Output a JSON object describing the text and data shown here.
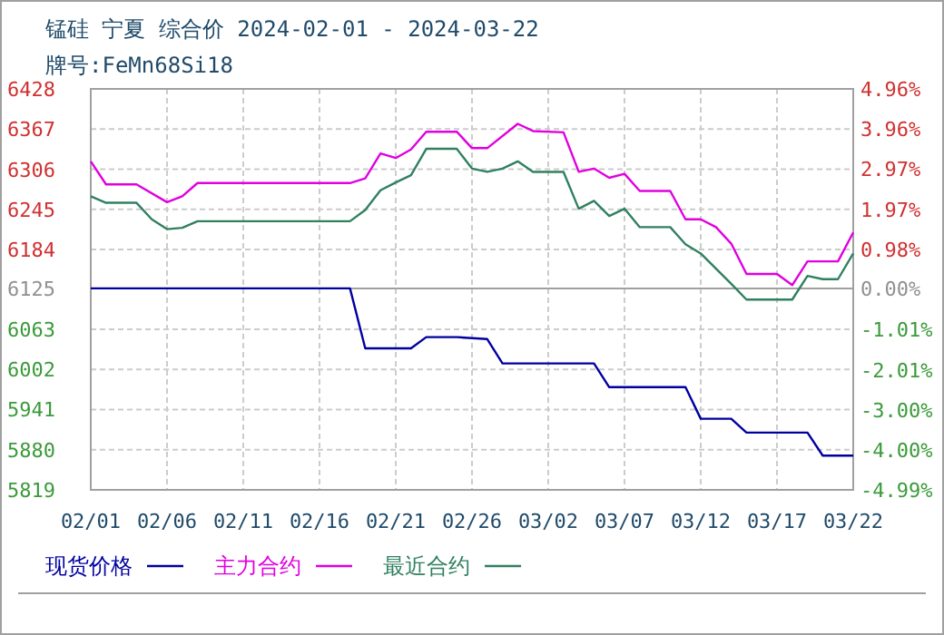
{
  "chart_data": {
    "type": "line",
    "title": "锰硅 宁夏 综合价 2024-02-01 - 2024-03-22",
    "subtitle": "牌号:FeMn68Si18",
    "xlim": [
      "2024-02-01",
      "2024-03-22"
    ],
    "xticks": [
      {
        "value": "2024-02-01",
        "label": "02/01"
      },
      {
        "value": "2024-02-06",
        "label": "02/06"
      },
      {
        "value": "2024-02-11",
        "label": "02/11"
      },
      {
        "value": "2024-02-16",
        "label": "02/16"
      },
      {
        "value": "2024-02-21",
        "label": "02/21"
      },
      {
        "value": "2024-02-26",
        "label": "02/26"
      },
      {
        "value": "2024-03-02",
        "label": "03/02"
      },
      {
        "value": "2024-03-07",
        "label": "03/07"
      },
      {
        "value": "2024-03-12",
        "label": "03/12"
      },
      {
        "value": "2024-03-17",
        "label": "03/17"
      },
      {
        "value": "2024-03-22",
        "label": "03/22"
      }
    ],
    "ylim": [
      5819,
      6428
    ],
    "yticks": [
      5819,
      5880,
      5941,
      6002,
      6063,
      6125,
      6184,
      6245,
      6306,
      6367,
      6428
    ],
    "y2lim": [
      -4.99,
      4.96
    ],
    "y2ticks": [
      {
        "value": -4.99,
        "label": "-4.99%"
      },
      {
        "value": -4.0,
        "label": "-4.00%"
      },
      {
        "value": -3.0,
        "label": "-3.00%"
      },
      {
        "value": -2.01,
        "label": "-2.01%"
      },
      {
        "value": -1.01,
        "label": "-1.01%"
      },
      {
        "value": 0,
        "label": "0.00%"
      },
      {
        "value": 0.98,
        "label": "0.98%"
      },
      {
        "value": 1.97,
        "label": "1.97%"
      },
      {
        "value": 2.97,
        "label": "2.97%"
      },
      {
        "value": 3.96,
        "label": "3.96%"
      },
      {
        "value": 4.96,
        "label": "4.96%"
      }
    ],
    "grid": true,
    "legend": "bottom left",
    "ref_lines": [
      {
        "axis": "y",
        "value": 6125,
        "color": "#a0a0a0"
      }
    ],
    "series": [
      {
        "name": "现货价格",
        "color": "#0000a0",
        "x": [
          "2024-02-01",
          "2024-02-18",
          "2024-02-19",
          "2024-02-22",
          "2024-02-23",
          "2024-02-25",
          "2024-02-27",
          "2024-02-28",
          "2024-03-05",
          "2024-03-06",
          "2024-03-11",
          "2024-03-12",
          "2024-03-14",
          "2024-03-15",
          "2024-03-19",
          "2024-03-20",
          "2024-03-22"
        ],
        "values": [
          6125,
          6125,
          6034,
          6034,
          6051,
          6051,
          6048,
          6011,
          6011,
          5975,
          5975,
          5927,
          5927,
          5906,
          5906,
          5871,
          5871
        ]
      },
      {
        "name": "主力合约",
        "color": "#e000e0",
        "x": [
          "2024-02-01",
          "2024-02-02",
          "2024-02-04",
          "2024-02-06",
          "2024-02-07",
          "2024-02-08",
          "2024-02-18",
          "2024-02-19",
          "2024-02-20",
          "2024-02-21",
          "2024-02-22",
          "2024-02-23",
          "2024-02-25",
          "2024-02-26",
          "2024-02-27",
          "2024-02-29",
          "2024-03-01",
          "2024-03-03",
          "2024-03-04",
          "2024-03-05",
          "2024-03-06",
          "2024-03-07",
          "2024-03-08",
          "2024-03-10",
          "2024-03-11",
          "2024-03-12",
          "2024-03-13",
          "2024-03-14",
          "2024-03-15",
          "2024-03-17",
          "2024-03-18",
          "2024-03-19",
          "2024-03-21",
          "2024-03-22"
        ],
        "values": [
          6318,
          6283,
          6283,
          6256,
          6265,
          6285,
          6285,
          6292,
          6330,
          6323,
          6336,
          6363,
          6363,
          6338,
          6338,
          6375,
          6364,
          6362,
          6302,
          6307,
          6293,
          6299,
          6273,
          6273,
          6230,
          6230,
          6218,
          6193,
          6147,
          6147,
          6130,
          6166,
          6166,
          6210
        ]
      },
      {
        "name": "最近合约",
        "color": "#308060",
        "x": [
          "2024-02-01",
          "2024-02-02",
          "2024-02-04",
          "2024-02-05",
          "2024-02-06",
          "2024-02-07",
          "2024-02-08",
          "2024-02-18",
          "2024-02-19",
          "2024-02-20",
          "2024-02-21",
          "2024-02-22",
          "2024-02-23",
          "2024-02-25",
          "2024-02-26",
          "2024-02-27",
          "2024-02-28",
          "2024-02-29",
          "2024-03-01",
          "2024-03-03",
          "2024-03-04",
          "2024-03-05",
          "2024-03-06",
          "2024-03-07",
          "2024-03-08",
          "2024-03-10",
          "2024-03-11",
          "2024-03-12",
          "2024-03-13",
          "2024-03-14",
          "2024-03-15",
          "2024-03-18",
          "2024-03-19",
          "2024-03-20",
          "2024-03-21",
          "2024-03-22"
        ],
        "values": [
          6265,
          6255,
          6255,
          6230,
          6215,
          6217,
          6227,
          6227,
          6244,
          6274,
          6286,
          6297,
          6337,
          6337,
          6307,
          6302,
          6307,
          6318,
          6302,
          6302,
          6246,
          6258,
          6235,
          6246,
          6218,
          6218,
          6192,
          6178,
          6155,
          6132,
          6108,
          6108,
          6144,
          6139,
          6139,
          6178
        ]
      }
    ]
  }
}
